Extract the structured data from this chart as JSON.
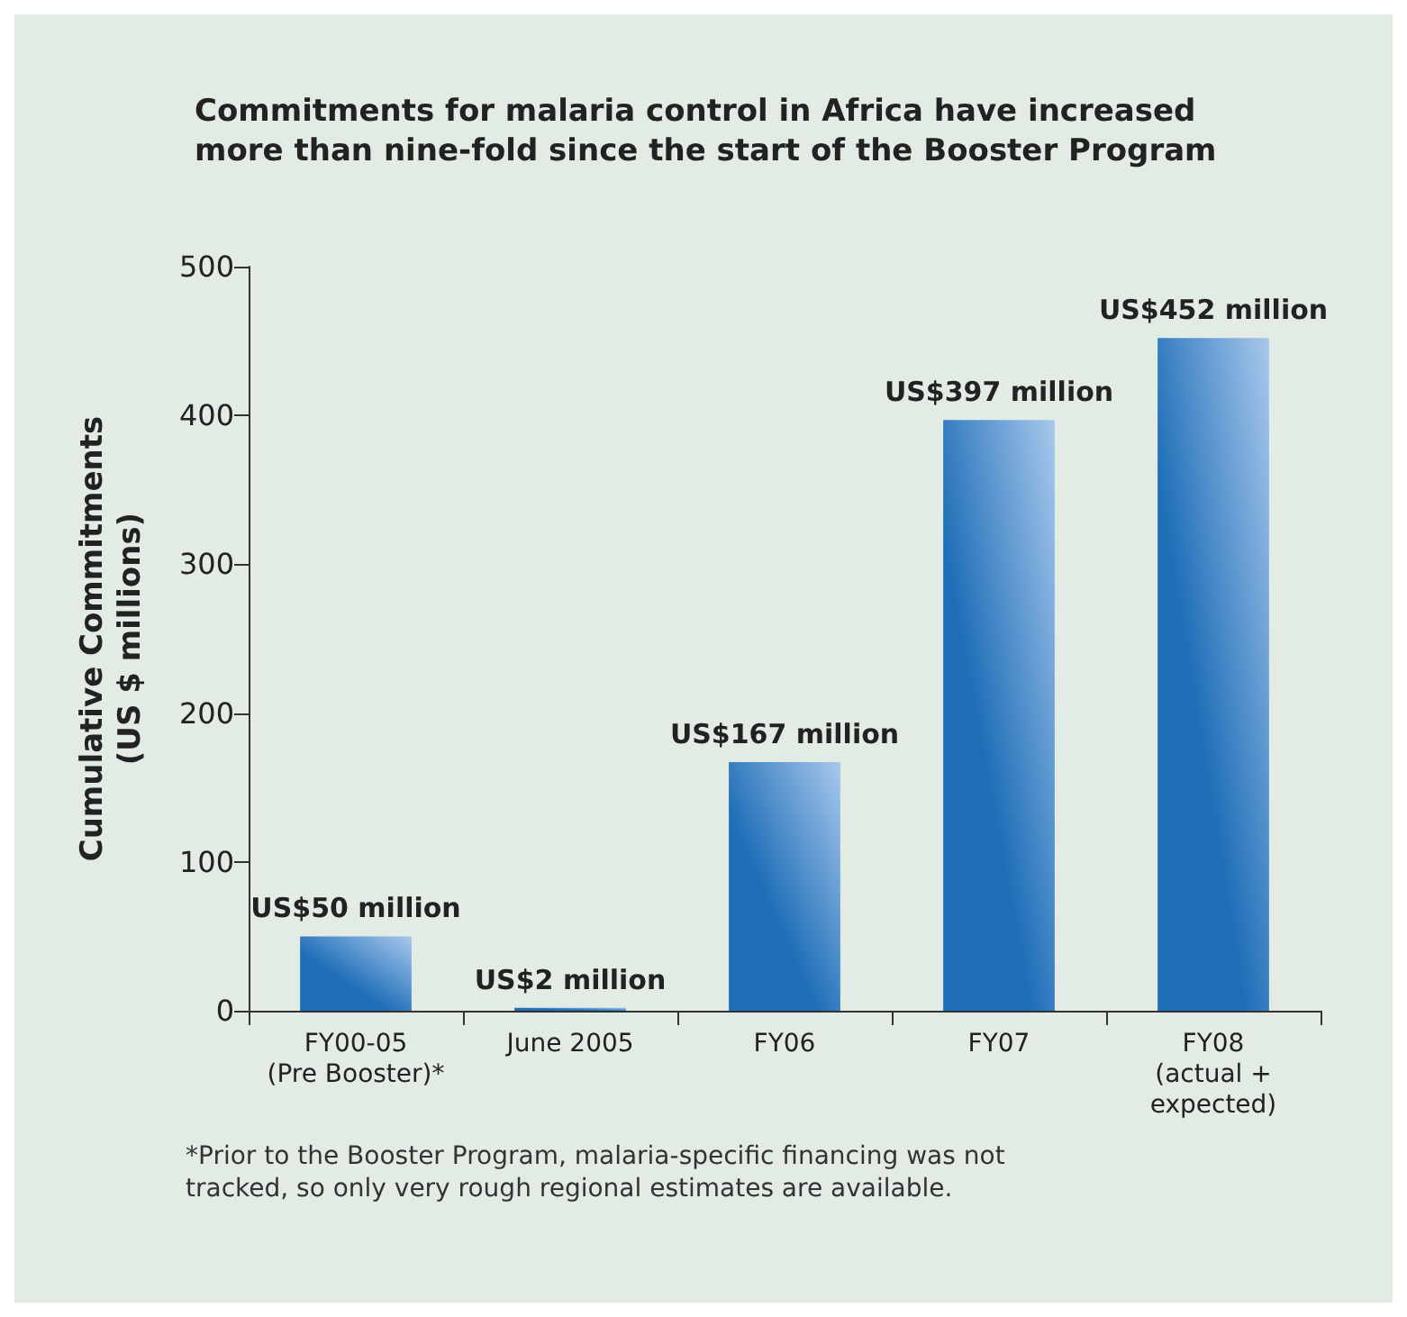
{
  "chart_data": {
    "type": "bar",
    "title": "Commitments for malaria control in Africa have increased more than nine-fold since the start of the Booster Program",
    "ylabel": "Cumulative Commitments\n(US $ millions)",
    "categories": [
      "FY00-05\n(Pre Booster)*",
      "June 2005",
      "FY06",
      "FY07",
      "FY08\n(actual +\nexpected)"
    ],
    "values": [
      50,
      2,
      167,
      397,
      452
    ],
    "value_labels": [
      "US$50 million",
      "US$2 million",
      "US$167 million",
      "US$397 million",
      "US$452 million"
    ],
    "color": "#1f6fb8",
    "ylim": [
      0,
      500
    ],
    "yticks": [
      0,
      100,
      200,
      300,
      400,
      500
    ],
    "grid": false,
    "annotations": [
      "*Prior to the Booster Program, malaria-specific financing was not tracked, so only very rough regional estimates are available."
    ]
  }
}
